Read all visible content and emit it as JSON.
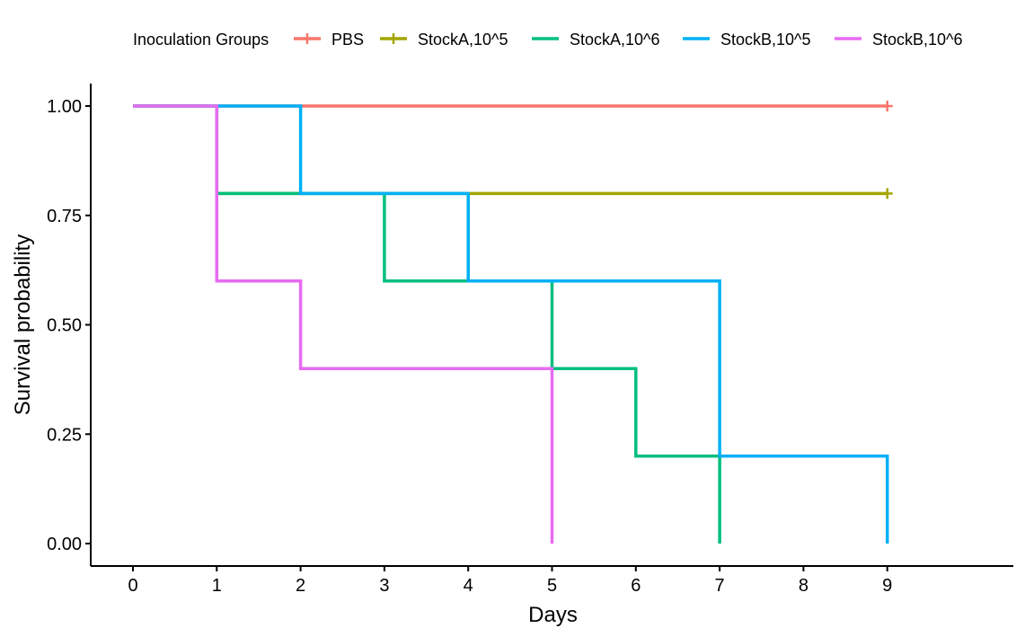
{
  "chart_data": {
    "type": "line",
    "subtype": "kaplan-meier-step",
    "xlabel": "Days",
    "ylabel": "Survival probability",
    "xlim": [
      0,
      10
    ],
    "ylim": [
      0,
      1
    ],
    "x_ticks": [
      0,
      1,
      2,
      3,
      4,
      5,
      6,
      7,
      8,
      9
    ],
    "y_ticks": [
      0,
      0.25,
      0.5,
      0.75,
      1.0
    ],
    "y_tick_labels": [
      "0.00",
      "0.25",
      "0.50",
      "0.75",
      "1.00"
    ],
    "grid": false,
    "legend": {
      "title": "Inoculation Groups",
      "placement": "top"
    },
    "series": [
      {
        "name": "PBS",
        "color": "#F8766D",
        "steps": [
          [
            0,
            1.0
          ],
          [
            9,
            1.0
          ]
        ],
        "censored": [
          [
            9,
            1.0
          ]
        ]
      },
      {
        "name": "StockA,10^5",
        "color": "#A3A500",
        "steps": [
          [
            0,
            1.0
          ],
          [
            1,
            0.8
          ],
          [
            9,
            0.8
          ]
        ],
        "censored": [
          [
            9,
            0.8
          ]
        ]
      },
      {
        "name": "StockA,10^6",
        "color": "#00BF7D",
        "steps": [
          [
            0,
            1.0
          ],
          [
            1,
            0.8
          ],
          [
            3,
            0.6
          ],
          [
            5,
            0.4
          ],
          [
            6,
            0.2
          ],
          [
            7,
            0.0
          ]
        ],
        "censored": []
      },
      {
        "name": "StockB,10^5",
        "color": "#00B0F6",
        "steps": [
          [
            0,
            1.0
          ],
          [
            2,
            0.8
          ],
          [
            4,
            0.6
          ],
          [
            7,
            0.2
          ],
          [
            9,
            0.0
          ]
        ],
        "censored": []
      },
      {
        "name": "StockB,10^6",
        "color": "#E76BF3",
        "steps": [
          [
            0,
            1.0
          ],
          [
            1,
            0.6
          ],
          [
            2,
            0.4
          ],
          [
            5,
            0.0
          ]
        ],
        "censored": []
      }
    ]
  }
}
